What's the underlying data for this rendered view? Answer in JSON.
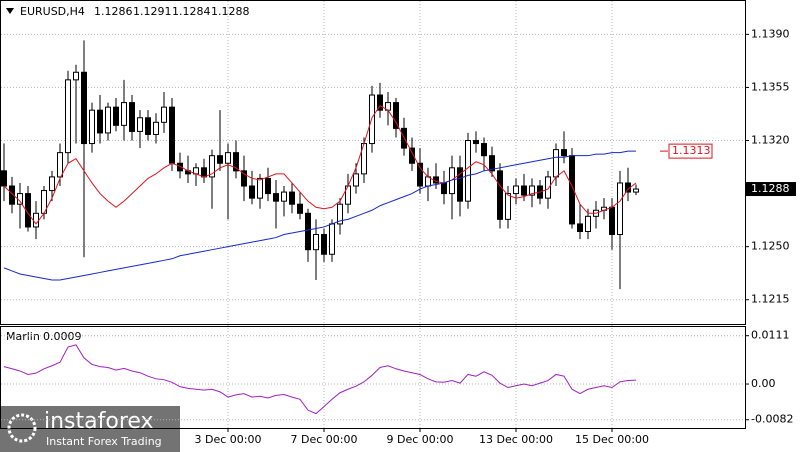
{
  "chart_data": [
    {
      "type": "candlestick",
      "title": "EURUSD,H4",
      "categories": [
        null,
        null,
        null,
        null,
        null,
        null,
        null,
        null,
        null,
        null,
        null,
        null,
        null,
        null,
        null,
        null,
        null,
        null,
        null,
        null,
        null,
        null,
        null,
        null,
        null,
        null,
        null,
        null,
        "3 Dec 00:00",
        null,
        null,
        null,
        null,
        null,
        null,
        null,
        null,
        null,
        null,
        null,
        "7 Dec 00:00",
        null,
        null,
        null,
        null,
        null,
        null,
        null,
        null,
        null,
        null,
        null,
        "9 Dec 00:00",
        null,
        null,
        null,
        null,
        null,
        null,
        null,
        null,
        null,
        null,
        null,
        "13 Dec 00:00",
        null,
        null,
        null,
        null,
        null,
        null,
        null,
        null,
        null,
        null,
        null,
        "15 Dec 00:00",
        null,
        null,
        null
      ],
      "ohlc": [
        [
          1.13,
          1.1318,
          1.128,
          1.129
        ],
        [
          1.129,
          1.1296,
          1.1272,
          1.1278
        ],
        [
          1.1278,
          1.1292,
          1.1262,
          1.1285
        ],
        [
          1.1285,
          1.129,
          1.126,
          1.1263
        ],
        [
          1.1263,
          1.128,
          1.1255,
          1.1272
        ],
        [
          1.1272,
          1.129,
          1.1268,
          1.1287
        ],
        [
          1.1287,
          1.13,
          1.128,
          1.1296
        ],
        [
          1.1296,
          1.1318,
          1.129,
          1.1312
        ],
        [
          1.1312,
          1.1366,
          1.1305,
          1.136
        ],
        [
          1.136,
          1.137,
          1.1318,
          1.1365
        ],
        [
          1.1365,
          1.1386,
          1.1243,
          1.1318
        ],
        [
          1.1318,
          1.1345,
          1.1312,
          1.134
        ],
        [
          1.134,
          1.135,
          1.1318,
          1.1325
        ],
        [
          1.1325,
          1.1345,
          1.132,
          1.1342
        ],
        [
          1.1342,
          1.1348,
          1.1326,
          1.133
        ],
        [
          1.133,
          1.136,
          1.132,
          1.1345
        ],
        [
          1.1345,
          1.135,
          1.132,
          1.1326
        ],
        [
          1.1326,
          1.134,
          1.1315,
          1.1335
        ],
        [
          1.1335,
          1.134,
          1.132,
          1.1324
        ],
        [
          1.1324,
          1.1338,
          1.1318,
          1.1332
        ],
        [
          1.1332,
          1.1352,
          1.1325,
          1.1342
        ],
        [
          1.1342,
          1.1348,
          1.13,
          1.1305
        ],
        [
          1.1305,
          1.1312,
          1.1295,
          1.13
        ],
        [
          1.13,
          1.131,
          1.1292,
          1.1298
        ],
        [
          1.1298,
          1.1305,
          1.129,
          1.1302
        ],
        [
          1.1302,
          1.1308,
          1.1292,
          1.1296
        ],
        [
          1.1296,
          1.1314,
          1.1275,
          1.131
        ],
        [
          1.131,
          1.134,
          1.13,
          1.1305
        ],
        [
          1.1305,
          1.1318,
          1.1268,
          1.1312
        ],
        [
          1.1312,
          1.132,
          1.1295,
          1.13
        ],
        [
          1.13,
          1.131,
          1.128,
          1.129
        ],
        [
          1.129,
          1.13,
          1.1278,
          1.1282
        ],
        [
          1.1282,
          1.1298,
          1.1275,
          1.1295
        ],
        [
          1.1295,
          1.1302,
          1.128,
          1.1285
        ],
        [
          1.1285,
          1.1294,
          1.1262,
          1.128
        ],
        [
          1.128,
          1.129,
          1.127,
          1.1286
        ],
        [
          1.1286,
          1.1292,
          1.1272,
          1.1278
        ],
        [
          1.1278,
          1.1286,
          1.1268,
          1.1272
        ],
        [
          1.1272,
          1.1275,
          1.124,
          1.1248
        ],
        [
          1.1248,
          1.1268,
          1.1228,
          1.1258
        ],
        [
          1.1258,
          1.1262,
          1.124,
          1.1245
        ],
        [
          1.1245,
          1.1268,
          1.124,
          1.1265
        ],
        [
          1.1265,
          1.1282,
          1.1258,
          1.1278
        ],
        [
          1.1278,
          1.1298,
          1.1272,
          1.129
        ],
        [
          1.129,
          1.1305,
          1.1285,
          1.1298
        ],
        [
          1.1298,
          1.1322,
          1.1292,
          1.1318
        ],
        [
          1.1318,
          1.1356,
          1.1312,
          1.135
        ],
        [
          1.135,
          1.1358,
          1.1335,
          1.134
        ],
        [
          1.134,
          1.1352,
          1.133,
          1.1345
        ],
        [
          1.1345,
          1.1348,
          1.1322,
          1.1328
        ],
        [
          1.1328,
          1.1335,
          1.131,
          1.1315
        ],
        [
          1.1315,
          1.1322,
          1.13,
          1.1305
        ],
        [
          1.1305,
          1.1315,
          1.1285,
          1.129
        ],
        [
          1.129,
          1.1302,
          1.128,
          1.1296
        ],
        [
          1.1296,
          1.1305,
          1.1288,
          1.1292
        ],
        [
          1.1292,
          1.13,
          1.1278,
          1.1285
        ],
        [
          1.1285,
          1.131,
          1.1268,
          1.1302
        ],
        [
          1.1302,
          1.131,
          1.127,
          1.128
        ],
        [
          1.128,
          1.1325,
          1.1275,
          1.132
        ],
        [
          1.132,
          1.1326,
          1.1312,
          1.1318
        ],
        [
          1.1318,
          1.1322,
          1.13,
          1.131
        ],
        [
          1.131,
          1.1316,
          1.1296,
          1.13
        ],
        [
          1.13,
          1.1305,
          1.1262,
          1.1268
        ],
        [
          1.1268,
          1.129,
          1.1262,
          1.1285
        ],
        [
          1.1285,
          1.1295,
          1.1278,
          1.129
        ],
        [
          1.129,
          1.1298,
          1.128,
          1.1284
        ],
        [
          1.1284,
          1.1295,
          1.1276,
          1.129
        ],
        [
          1.129,
          1.1294,
          1.1278,
          1.1282
        ],
        [
          1.1282,
          1.13,
          1.1275,
          1.1296
        ],
        [
          1.1296,
          1.1318,
          1.129,
          1.1314
        ],
        [
          1.1314,
          1.1326,
          1.1305,
          1.131
        ],
        [
          1.131,
          1.1315,
          1.1262,
          1.1265
        ],
        [
          1.1265,
          1.1278,
          1.1255,
          1.126
        ],
        [
          1.126,
          1.1275,
          1.1255,
          1.127
        ],
        [
          1.127,
          1.128,
          1.1262,
          1.1274
        ],
        [
          1.1274,
          1.1282,
          1.1268,
          1.1276
        ],
        [
          1.1276,
          1.1282,
          1.1248,
          1.1258
        ],
        [
          1.1258,
          1.13,
          1.1222,
          1.1292
        ],
        [
          1.1292,
          1.1302,
          1.128,
          1.1286
        ],
        [
          1.1286,
          1.1291,
          1.1284,
          1.1288
        ]
      ],
      "up_color": "#ffffff",
      "down_color": "#000000",
      "series": [
        {
          "color": "#e0141e",
          "values": [
            1.129,
            1.1285,
            1.128,
            1.1272,
            1.1265,
            1.1272,
            1.1282,
            1.1295,
            1.1305,
            1.1308,
            1.13,
            1.1292,
            1.1285,
            1.128,
            1.1276,
            1.128,
            1.1285,
            1.129,
            1.1295,
            1.1298,
            1.1302,
            1.1305,
            1.1303,
            1.13,
            1.1298,
            1.1296,
            1.1298,
            1.1302,
            1.1304,
            1.1302,
            1.1298,
            1.1295,
            1.1294,
            1.1296,
            1.1298,
            1.1298,
            1.1292,
            1.1286,
            1.128,
            1.1276,
            1.1275,
            1.1276,
            1.128,
            1.129,
            1.1302,
            1.1318,
            1.1335,
            1.1343,
            1.134,
            1.1332,
            1.1322,
            1.1312,
            1.1302,
            1.1296,
            1.1293,
            1.1292,
            1.1294,
            1.1298,
            1.1302,
            1.1306,
            1.1304,
            1.1298,
            1.129,
            1.1284,
            1.1282,
            1.1283,
            1.1285,
            1.1286,
            1.1288,
            1.1296,
            1.13,
            1.129,
            1.1278,
            1.1272,
            1.1272,
            1.1274,
            1.1276,
            1.128,
            1.1288,
            1.1292
          ]
        },
        {
          "color": "#1428c8",
          "values": [
            1.1236,
            1.1234,
            1.1232,
            1.1231,
            1.123,
            1.1229,
            1.1228,
            1.1228,
            1.1229,
            1.123,
            1.1231,
            1.1232,
            1.1233,
            1.1234,
            1.1235,
            1.1236,
            1.1237,
            1.1238,
            1.1239,
            1.124,
            1.1241,
            1.1242,
            1.1244,
            1.1245,
            1.1246,
            1.1247,
            1.1248,
            1.1249,
            1.125,
            1.1251,
            1.1252,
            1.1253,
            1.1254,
            1.1255,
            1.1256,
            1.1258,
            1.1259,
            1.126,
            1.1261,
            1.1262,
            1.1263,
            1.1265,
            1.1267,
            1.1268,
            1.127,
            1.1272,
            1.1274,
            1.1277,
            1.1279,
            1.1281,
            1.1283,
            1.1285,
            1.1288,
            1.129,
            1.1291,
            1.1292,
            1.1294,
            1.1295,
            1.1297,
            1.1298,
            1.13,
            1.1301,
            1.1302,
            1.1303,
            1.1304,
            1.1305,
            1.1306,
            1.1307,
            1.1308,
            1.1309,
            1.1309,
            1.131,
            1.131,
            1.131,
            1.1311,
            1.1311,
            1.1312,
            1.1312,
            1.1313,
            1.1313
          ]
        }
      ],
      "price_label": 1.1313,
      "price_label_color": "#e0141e",
      "ylim": [
        1.1199,
        1.1412
      ],
      "yticks": [
        {
          "value": 1.139,
          "label": "1.1390"
        },
        1.1355,
        {
          "value": 1.132,
          "label": "1.1320"
        },
        {
          "value": 1.125,
          "label": "1.1250"
        },
        1.1215
      ],
      "grid": true,
      "watermark": "instaforex",
      "watermark_sub": "Instant Forex Trading"
    },
    {
      "type": "line",
      "title": "Marlin",
      "series": [
        {
          "color": "#a020c0",
          "values": [
            0.004,
            0.0035,
            0.003,
            0.0022,
            0.0025,
            0.0035,
            0.0042,
            0.005,
            0.0085,
            0.009,
            0.006,
            0.0045,
            0.004,
            0.0038,
            0.0032,
            0.0036,
            0.003,
            0.0026,
            0.0018,
            0.0012,
            0.001,
            0.0004,
            -0.0006,
            -0.001,
            -0.0012,
            -0.0014,
            -0.0012,
            -0.0018,
            -0.003,
            -0.0025,
            -0.0022,
            -0.003,
            -0.0028,
            -0.0032,
            -0.0026,
            -0.0024,
            -0.003,
            -0.0035,
            -0.006,
            -0.0068,
            -0.0052,
            -0.0035,
            -0.002,
            -0.0012,
            -0.0005,
            0.0005,
            0.002,
            0.0038,
            0.0042,
            0.0035,
            0.003,
            0.0026,
            0.0022,
            0.0012,
            0.0005,
            0.0004,
            0.0008,
            0.0002,
            0.0022,
            0.0018,
            0.0028,
            0.002,
            0.0002,
            -0.0008,
            -0.0004,
            0,
            -0.0004,
            0.0002,
            0.0008,
            0.0022,
            0.0018,
            -0.0012,
            -0.0022,
            -0.0012,
            -0.0008,
            -0.0004,
            -0.0008,
            0.0005,
            0.0008,
            0.0009
          ]
        }
      ],
      "ylim": [
        -0.0101,
        0.0131
      ],
      "yticks": [
        0.0111,
        {
          "value": 0,
          "label": "0.00"
        },
        -0.0082
      ],
      "grid": true
    }
  ]
}
